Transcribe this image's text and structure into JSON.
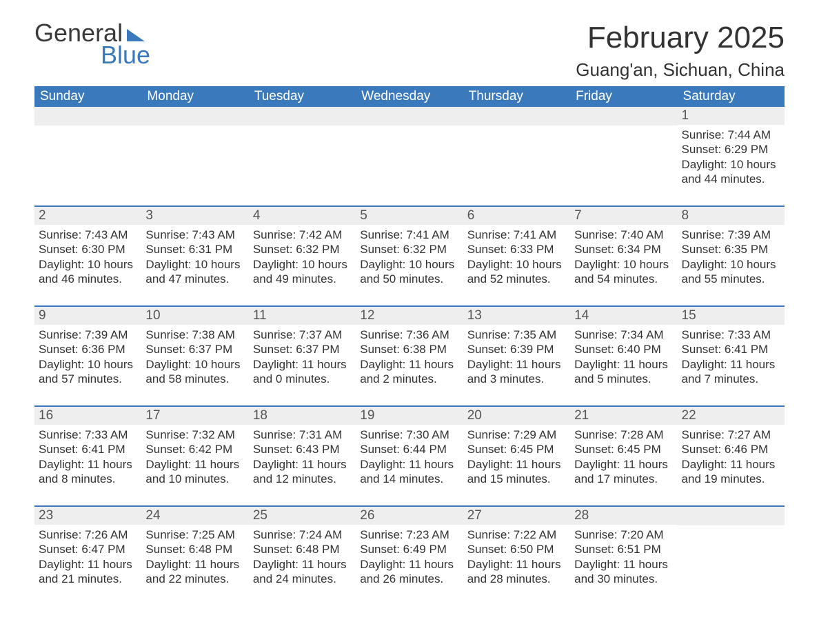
{
  "logo": {
    "word1": "General",
    "word2": "Blue"
  },
  "title": "February 2025",
  "location": "Guang'an, Sichuan, China",
  "colors": {
    "brand_blue": "#3b79bd",
    "header_bg": "#3b79bd",
    "header_text": "#ffffff",
    "row_label_bg": "#eeeeee",
    "text": "#333333",
    "background": "#ffffff"
  },
  "typography": {
    "month_title_fontsize": 44,
    "location_fontsize": 26,
    "header_fontsize": 19,
    "daynum_fontsize": 19,
    "body_fontsize": 17,
    "font_family": "Arial"
  },
  "day_names": [
    "Sunday",
    "Monday",
    "Tuesday",
    "Wednesday",
    "Thursday",
    "Friday",
    "Saturday"
  ],
  "labels": {
    "sunrise": "Sunrise",
    "sunset": "Sunset",
    "daylight": "Daylight"
  },
  "weeks": [
    [
      {
        "empty": true
      },
      {
        "empty": true
      },
      {
        "empty": true
      },
      {
        "empty": true
      },
      {
        "empty": true
      },
      {
        "empty": true
      },
      {
        "day": 1,
        "sunrise": "7:44 AM",
        "sunset": "6:29 PM",
        "daylight_hours": 10,
        "daylight_minutes": 44
      }
    ],
    [
      {
        "day": 2,
        "sunrise": "7:43 AM",
        "sunset": "6:30 PM",
        "daylight_hours": 10,
        "daylight_minutes": 46
      },
      {
        "day": 3,
        "sunrise": "7:43 AM",
        "sunset": "6:31 PM",
        "daylight_hours": 10,
        "daylight_minutes": 47
      },
      {
        "day": 4,
        "sunrise": "7:42 AM",
        "sunset": "6:32 PM",
        "daylight_hours": 10,
        "daylight_minutes": 49
      },
      {
        "day": 5,
        "sunrise": "7:41 AM",
        "sunset": "6:32 PM",
        "daylight_hours": 10,
        "daylight_minutes": 50
      },
      {
        "day": 6,
        "sunrise": "7:41 AM",
        "sunset": "6:33 PM",
        "daylight_hours": 10,
        "daylight_minutes": 52
      },
      {
        "day": 7,
        "sunrise": "7:40 AM",
        "sunset": "6:34 PM",
        "daylight_hours": 10,
        "daylight_minutes": 54
      },
      {
        "day": 8,
        "sunrise": "7:39 AM",
        "sunset": "6:35 PM",
        "daylight_hours": 10,
        "daylight_minutes": 55
      }
    ],
    [
      {
        "day": 9,
        "sunrise": "7:39 AM",
        "sunset": "6:36 PM",
        "daylight_hours": 10,
        "daylight_minutes": 57
      },
      {
        "day": 10,
        "sunrise": "7:38 AM",
        "sunset": "6:37 PM",
        "daylight_hours": 10,
        "daylight_minutes": 58
      },
      {
        "day": 11,
        "sunrise": "7:37 AM",
        "sunset": "6:37 PM",
        "daylight_hours": 11,
        "daylight_minutes": 0
      },
      {
        "day": 12,
        "sunrise": "7:36 AM",
        "sunset": "6:38 PM",
        "daylight_hours": 11,
        "daylight_minutes": 2
      },
      {
        "day": 13,
        "sunrise": "7:35 AM",
        "sunset": "6:39 PM",
        "daylight_hours": 11,
        "daylight_minutes": 3
      },
      {
        "day": 14,
        "sunrise": "7:34 AM",
        "sunset": "6:40 PM",
        "daylight_hours": 11,
        "daylight_minutes": 5
      },
      {
        "day": 15,
        "sunrise": "7:33 AM",
        "sunset": "6:41 PM",
        "daylight_hours": 11,
        "daylight_minutes": 7
      }
    ],
    [
      {
        "day": 16,
        "sunrise": "7:33 AM",
        "sunset": "6:41 PM",
        "daylight_hours": 11,
        "daylight_minutes": 8
      },
      {
        "day": 17,
        "sunrise": "7:32 AM",
        "sunset": "6:42 PM",
        "daylight_hours": 11,
        "daylight_minutes": 10
      },
      {
        "day": 18,
        "sunrise": "7:31 AM",
        "sunset": "6:43 PM",
        "daylight_hours": 11,
        "daylight_minutes": 12
      },
      {
        "day": 19,
        "sunrise": "7:30 AM",
        "sunset": "6:44 PM",
        "daylight_hours": 11,
        "daylight_minutes": 14
      },
      {
        "day": 20,
        "sunrise": "7:29 AM",
        "sunset": "6:45 PM",
        "daylight_hours": 11,
        "daylight_minutes": 15
      },
      {
        "day": 21,
        "sunrise": "7:28 AM",
        "sunset": "6:45 PM",
        "daylight_hours": 11,
        "daylight_minutes": 17
      },
      {
        "day": 22,
        "sunrise": "7:27 AM",
        "sunset": "6:46 PM",
        "daylight_hours": 11,
        "daylight_minutes": 19
      }
    ],
    [
      {
        "day": 23,
        "sunrise": "7:26 AM",
        "sunset": "6:47 PM",
        "daylight_hours": 11,
        "daylight_minutes": 21
      },
      {
        "day": 24,
        "sunrise": "7:25 AM",
        "sunset": "6:48 PM",
        "daylight_hours": 11,
        "daylight_minutes": 22
      },
      {
        "day": 25,
        "sunrise": "7:24 AM",
        "sunset": "6:48 PM",
        "daylight_hours": 11,
        "daylight_minutes": 24
      },
      {
        "day": 26,
        "sunrise": "7:23 AM",
        "sunset": "6:49 PM",
        "daylight_hours": 11,
        "daylight_minutes": 26
      },
      {
        "day": 27,
        "sunrise": "7:22 AM",
        "sunset": "6:50 PM",
        "daylight_hours": 11,
        "daylight_minutes": 28
      },
      {
        "day": 28,
        "sunrise": "7:20 AM",
        "sunset": "6:51 PM",
        "daylight_hours": 11,
        "daylight_minutes": 30
      },
      {
        "empty": true
      }
    ]
  ]
}
